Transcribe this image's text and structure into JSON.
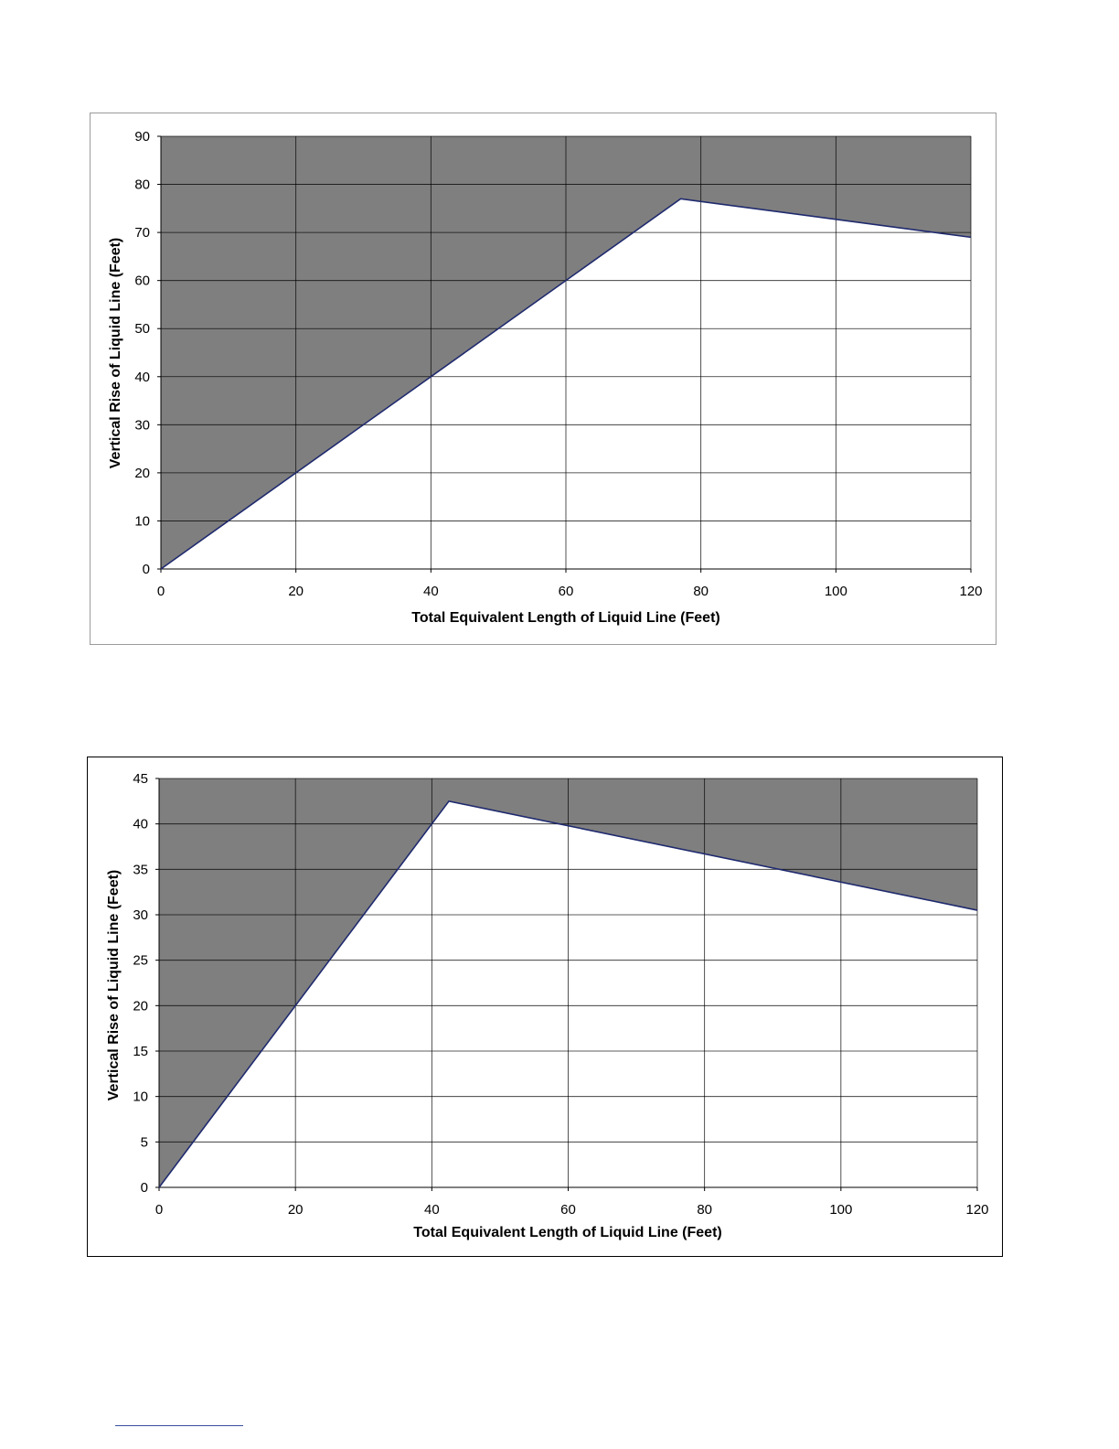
{
  "chart_data": [
    {
      "type": "area",
      "xlabel": "Total Equivalent Length of Liquid Line (Feet)",
      "ylabel": "Vertical Rise of Liquid Line (Feet)",
      "xlim": [
        0,
        120
      ],
      "ylim": [
        0,
        90
      ],
      "xticks": [
        0,
        20,
        40,
        60,
        80,
        100,
        120
      ],
      "yticks": [
        0,
        10,
        20,
        30,
        40,
        50,
        60,
        70,
        80,
        90
      ],
      "grid": true,
      "boundary": {
        "x": [
          0,
          77,
          120
        ],
        "y": [
          0,
          77,
          69
        ]
      },
      "colors": {
        "region": "#7f7f7f",
        "boundary": "#1f2a6e",
        "grid": "#000000",
        "background": "#ffffff"
      }
    },
    {
      "type": "area",
      "xlabel": "Total Equivalent Length of Liquid Line (Feet)",
      "ylabel": "Vertical Rise of Liquid Line (Feet)",
      "xlim": [
        0,
        120
      ],
      "ylim": [
        0,
        45
      ],
      "xticks": [
        0,
        20,
        40,
        60,
        80,
        100,
        120
      ],
      "yticks": [
        0,
        5,
        10,
        15,
        20,
        25,
        30,
        35,
        40,
        45
      ],
      "grid": true,
      "boundary": {
        "x": [
          0,
          42.5,
          120
        ],
        "y": [
          0,
          42.5,
          30.5
        ]
      },
      "colors": {
        "region": "#7f7f7f",
        "boundary": "#1f2a6e",
        "grid": "#000000",
        "background": "#ffffff"
      }
    }
  ]
}
